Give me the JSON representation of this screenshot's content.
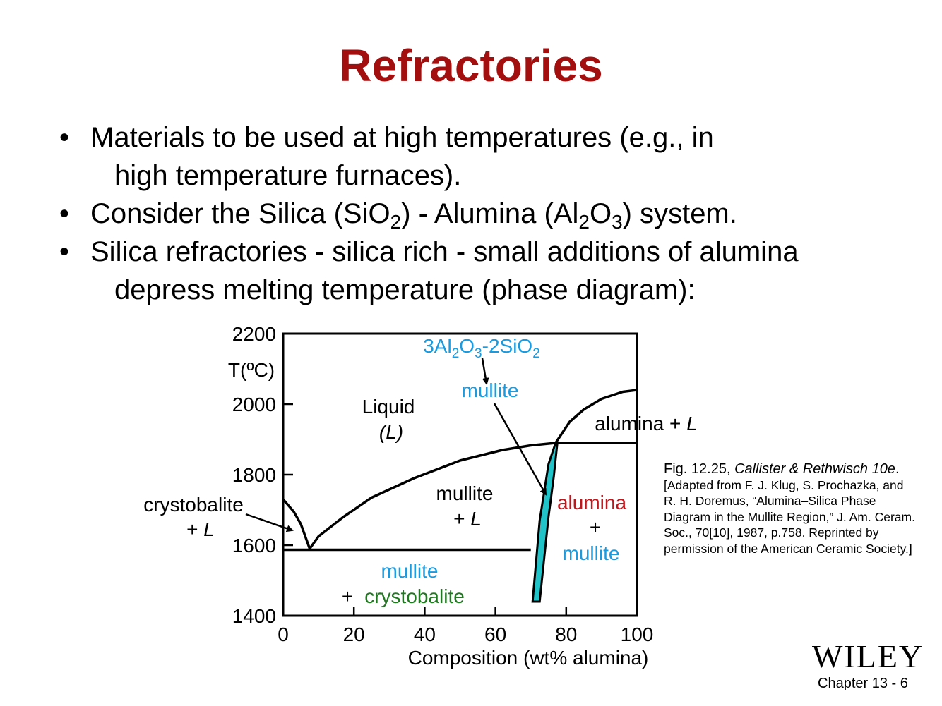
{
  "title": "Refractories",
  "bullets": [
    {
      "line1": "Materials to be used at high temperatures (e.g., in",
      "line2": "high temperature furnaces)."
    },
    {
      "pre": "Consider the Silica (SiO",
      "s1": "2",
      "mid": ") - Alumina (Al",
      "s2": "2",
      "mid2": "O",
      "s3": "3",
      "post": ") system."
    },
    {
      "line1": "Silica refractories - silica rich - small additions of alumina",
      "line2": "depress melting temperature (phase diagram):"
    }
  ],
  "chart_data": {
    "type": "phase_diagram",
    "ylabel": "T(ºC)",
    "xlabel": "Composition (wt% alumina)",
    "xlim": [
      0,
      100
    ],
    "ylim": [
      1400,
      2200
    ],
    "xticks": [
      "0",
      "20",
      "40",
      "60",
      "80",
      "100"
    ],
    "yticks": [
      "1400",
      "1600",
      "1800",
      "2000",
      "2200"
    ],
    "boundaries": {
      "crystobalite_liquidus": [
        [
          0,
          1730
        ],
        [
          3,
          1695
        ],
        [
          5,
          1660
        ],
        [
          7.5,
          1590
        ]
      ],
      "mullite_liquidus": [
        [
          7.5,
          1590
        ],
        [
          10,
          1625
        ],
        [
          17,
          1680
        ],
        [
          25,
          1735
        ],
        [
          37,
          1790
        ],
        [
          50,
          1840
        ],
        [
          62,
          1870
        ],
        [
          70,
          1883
        ],
        [
          77,
          1890
        ]
      ],
      "eutectic_isotherm": [
        [
          0,
          1587
        ],
        [
          70,
          1587
        ]
      ],
      "mullite_field_left": [
        [
          70.5,
          1440
        ],
        [
          72.5,
          1670
        ],
        [
          75,
          1830
        ],
        [
          77,
          1890
        ]
      ],
      "mullite_field_right": [
        [
          72.5,
          1440
        ],
        [
          75,
          1680
        ],
        [
          76.5,
          1795
        ],
        [
          77.5,
          1890
        ]
      ],
      "peritectic_isotherm": [
        [
          77,
          1890
        ],
        [
          100,
          1890
        ]
      ],
      "alumina_liquidus": [
        [
          77,
          1890
        ],
        [
          81,
          1950
        ],
        [
          85,
          1985
        ],
        [
          90,
          2015
        ],
        [
          96,
          2035
        ],
        [
          100,
          2040
        ]
      ]
    },
    "labels": {
      "liquid": "Liquid",
      "liquid_sym": "(L)",
      "mullite_formula": {
        "a": "3Al",
        "s1": "2",
        "b": "O",
        "s2": "3",
        "c": "-2SiO",
        "s3": "2"
      },
      "mullite_name": "mullite",
      "alumina_L": "alumina + L",
      "mullite_L_1": "mullite",
      "mullite_L_2": "+ L",
      "crysto_L_1": "crystobalite",
      "crysto_L_2": "+ L",
      "alumina_mullite_1": "alumina",
      "alumina_mullite_2": "+",
      "alumina_mullite_3": "mullite",
      "mullite_crysto_1": "mullite",
      "mullite_crysto_2": "+",
      "mullite_crysto_3": "crystobalite"
    },
    "colors": {
      "mullite": "#1a9be0",
      "alumina": "#c0161c",
      "crystobalite": "#1f7a1f",
      "mullite_field": "#22c3c8"
    }
  },
  "caption": {
    "fig": "Fig. 12.25, ",
    "authors": "Callister & Rethwisch 10e",
    "dot": ".",
    "lines": [
      "[Adapted from F. J. Klug, S. Prochazka, and",
      "R. H. Doremus, “Alumina–Silica Phase",
      "Diagram in the Mullite Region,” J. Am. Ceram.",
      "Soc., 70[10], 1987, p.758. Reprinted by",
      "permission of the American Ceramic Society.]"
    ]
  },
  "logo": "WILEY",
  "footer": "Chapter 13 -  6"
}
